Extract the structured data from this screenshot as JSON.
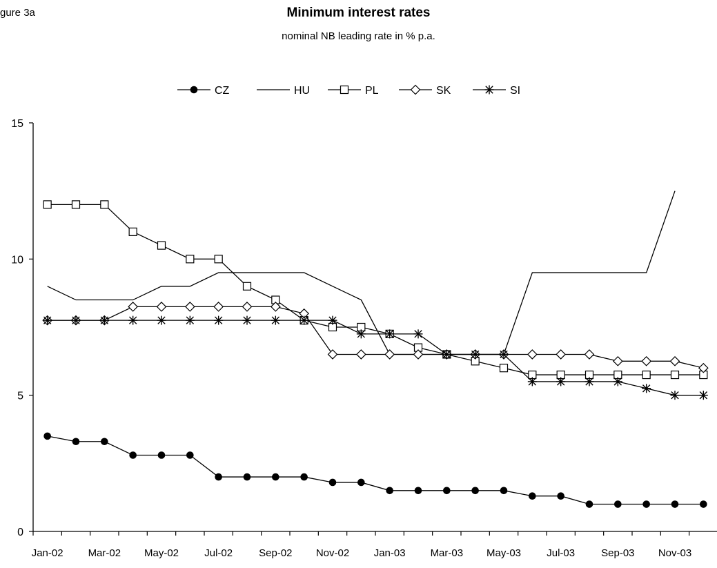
{
  "figure_label": "gure 3a",
  "chart_data": {
    "type": "line",
    "title": "Minimum interest rates",
    "subtitle": "nominal NB leading rate in % p.a.",
    "xlabel": "",
    "ylabel": "",
    "ylim": [
      0,
      15
    ],
    "yticks": [
      0,
      5,
      10,
      15
    ],
    "legend_position": "top",
    "grid": false,
    "x": [
      "Jan-02",
      "Feb-02",
      "Mar-02",
      "Apr-02",
      "May-02",
      "Jun-02",
      "Jul-02",
      "Aug-02",
      "Sep-02",
      "Oct-02",
      "Nov-02",
      "Dec-02",
      "Jan-03",
      "Feb-03",
      "Mar-03",
      "Apr-03",
      "May-03",
      "Jun-03",
      "Jul-03",
      "Aug-03",
      "Sep-03",
      "Oct-03",
      "Nov-03",
      "Dec-03"
    ],
    "xticklabels": [
      "Jan-02",
      "Mar-02",
      "May-02",
      "Jul-02",
      "Sep-02",
      "Nov-02",
      "Jan-03",
      "Mar-03",
      "May-03",
      "Jul-03",
      "Sep-03",
      "Nov-03"
    ],
    "series": [
      {
        "name": "CZ",
        "marker": "filled-circle",
        "values": [
          3.5,
          3.3,
          3.3,
          2.8,
          2.8,
          2.8,
          2.0,
          2.0,
          2.0,
          2.0,
          1.8,
          1.8,
          1.5,
          1.5,
          1.5,
          1.5,
          1.5,
          1.3,
          1.3,
          1.0,
          1.0,
          1.0,
          1.0,
          1.0
        ]
      },
      {
        "name": "HU",
        "marker": "none",
        "values": [
          9.0,
          8.5,
          8.5,
          8.5,
          9.0,
          9.0,
          9.5,
          9.5,
          9.5,
          9.5,
          9.0,
          8.5,
          6.5,
          6.5,
          6.5,
          6.5,
          6.5,
          9.5,
          9.5,
          9.5,
          9.5,
          9.5,
          12.5,
          null
        ]
      },
      {
        "name": "PL",
        "marker": "square",
        "values": [
          12.0,
          12.0,
          12.0,
          11.0,
          10.5,
          10.0,
          10.0,
          9.0,
          8.5,
          7.75,
          7.5,
          7.5,
          7.25,
          6.75,
          6.5,
          6.25,
          6.0,
          5.75,
          5.75,
          5.75,
          5.75,
          5.75,
          5.75,
          5.75
        ]
      },
      {
        "name": "SK",
        "marker": "diamond",
        "values": [
          7.75,
          7.75,
          7.75,
          8.25,
          8.25,
          8.25,
          8.25,
          8.25,
          8.25,
          8.0,
          6.5,
          6.5,
          6.5,
          6.5,
          6.5,
          6.5,
          6.5,
          6.5,
          6.5,
          6.5,
          6.25,
          6.25,
          6.25,
          6.0
        ]
      },
      {
        "name": "SI",
        "marker": "asterisk",
        "values": [
          7.75,
          7.75,
          7.75,
          7.75,
          7.75,
          7.75,
          7.75,
          7.75,
          7.75,
          7.75,
          7.75,
          7.25,
          7.25,
          7.25,
          6.5,
          6.5,
          6.5,
          5.5,
          5.5,
          5.5,
          5.5,
          5.25,
          5.0,
          5.0
        ]
      }
    ]
  }
}
